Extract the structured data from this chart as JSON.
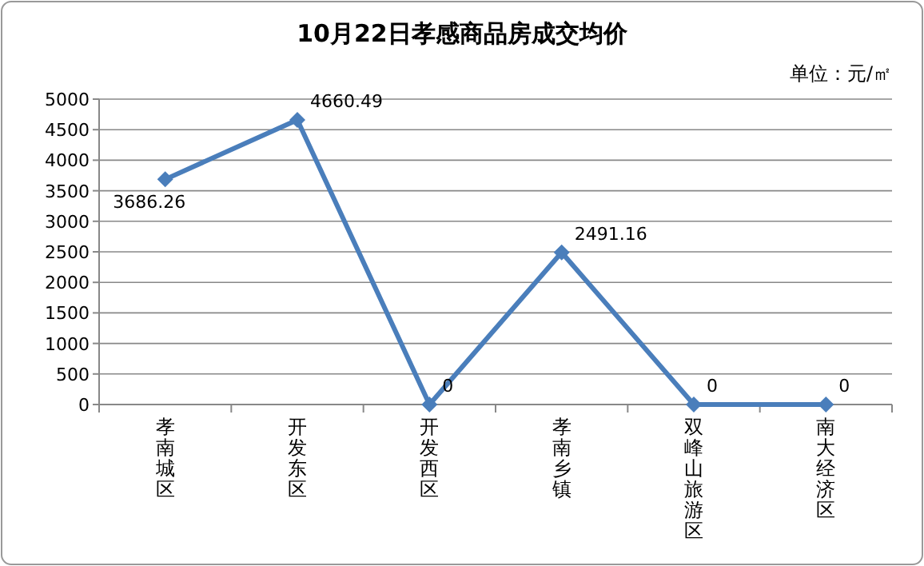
{
  "chart_data": {
    "type": "line",
    "title": "10月22日孝感商品房成交均价",
    "subtitle": "单位：元/㎡",
    "categories": [
      "孝南城区",
      "开发东区",
      "开发西区",
      "孝南乡镇",
      "双峰山旅游区",
      "南大经济区"
    ],
    "series": [
      {
        "color": "#4a7ebb",
        "values": [
          3686.26,
          4660.49,
          0,
          2491.16,
          0,
          0
        ]
      }
    ],
    "ylim": [
      0,
      5000
    ],
    "yticks": [
      0,
      500,
      1000,
      1500,
      2000,
      2500,
      3000,
      3500,
      4000,
      4500,
      5000
    ],
    "grid": "y",
    "marker": "diamond",
    "data_labels": true
  }
}
